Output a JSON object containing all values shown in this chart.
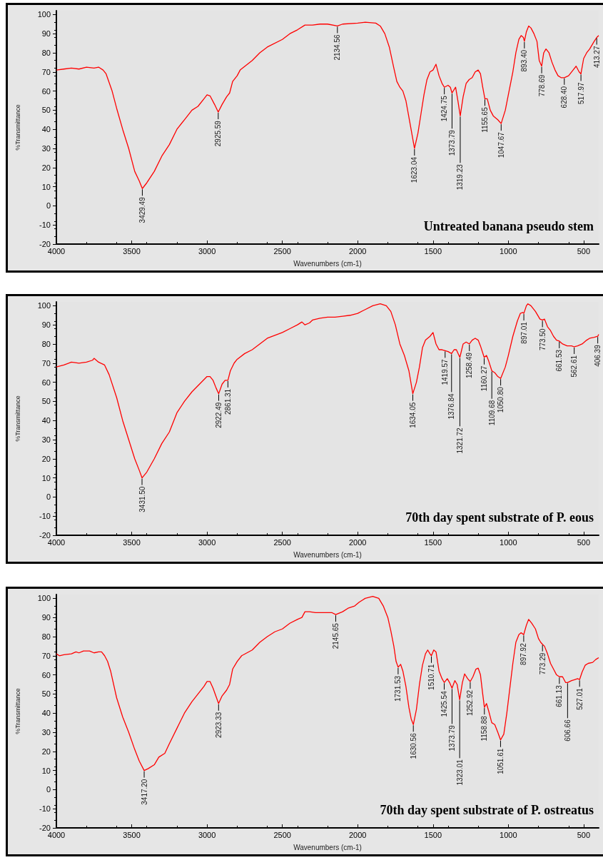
{
  "chart_data": [
    {
      "type": "line",
      "title": "Untreated banana pseudo stem",
      "xlabel": "Wavenumbers (cm-1)",
      "ylabel": "%Transmittance",
      "xlim": [
        4000,
        400
      ],
      "ylim": [
        -20,
        102
      ],
      "xticks": [
        4000,
        3500,
        3000,
        2500,
        2000,
        1500,
        1000,
        500
      ],
      "yticks": [
        -20,
        -10,
        0,
        10,
        20,
        30,
        40,
        50,
        60,
        70,
        80,
        90,
        100
      ],
      "x": [
        4000,
        3950,
        3900,
        3850,
        3800,
        3750,
        3720,
        3690,
        3670,
        3630,
        3600,
        3560,
        3520,
        3480,
        3450,
        3429.49,
        3400,
        3350,
        3300,
        3250,
        3200,
        3150,
        3100,
        3060,
        3020,
        3000,
        2980,
        2950,
        2925.59,
        2900,
        2870,
        2850,
        2830,
        2800,
        2780,
        2700,
        2650,
        2600,
        2500,
        2450,
        2400,
        2350,
        2300,
        2250,
        2200,
        2134.56,
        2100,
        2000,
        1950,
        1880,
        1850,
        1820,
        1790,
        1760,
        1740,
        1720,
        1700,
        1680,
        1650,
        1623.04,
        1600,
        1580,
        1560,
        1540,
        1520,
        1500,
        1480,
        1460,
        1440,
        1424.75,
        1400,
        1385,
        1373.79,
        1350,
        1335,
        1319.23,
        1300,
        1280,
        1260,
        1240,
        1220,
        1200,
        1185,
        1170,
        1155.65,
        1140,
        1120,
        1100,
        1070,
        1047.67,
        1020,
        1000,
        970,
        950,
        930,
        915,
        900,
        893.4,
        880,
        865,
        850,
        830,
        810,
        795,
        778.69,
        765,
        750,
        730,
        710,
        690,
        670,
        650,
        628.4,
        600,
        570,
        550,
        530,
        517.97,
        500,
        480,
        460,
        430,
        413.27,
        400
      ],
      "series": [
        {
          "color": "#ff0000",
          "values": [
            71,
            71.5,
            72,
            71.5,
            72.5,
            72,
            72.5,
            71,
            69,
            60,
            51,
            40,
            30,
            18,
            13,
            9,
            12,
            18,
            26,
            32,
            40,
            45,
            50,
            52,
            56,
            58,
            57.5,
            53,
            49,
            53,
            57,
            59,
            65,
            68,
            71,
            76,
            80,
            83,
            87,
            90,
            92,
            94.5,
            94.5,
            95,
            95,
            94,
            95,
            95.5,
            96,
            95.5,
            94,
            90,
            83,
            72,
            65,
            62,
            60,
            55,
            42,
            30,
            38,
            48,
            58,
            66,
            70,
            71,
            74,
            68,
            64,
            62,
            63,
            62,
            59,
            62,
            55,
            47,
            57,
            64,
            66,
            67,
            70,
            71,
            69,
            62,
            56,
            56,
            50,
            47,
            45,
            43,
            50,
            58,
            70,
            80,
            87,
            89,
            88,
            86,
            91,
            94,
            93,
            90,
            86,
            76,
            73,
            80,
            82,
            80,
            75,
            71,
            68,
            67,
            67,
            68,
            71,
            73,
            70,
            69,
            77,
            80,
            82,
            86,
            88,
            89
          ]
        }
      ],
      "annotations": [
        {
          "text": "3429.49",
          "x": 3429.49,
          "y": 9
        },
        {
          "text": "2925.59",
          "x": 2925.59,
          "y": 49
        },
        {
          "text": "2134.56",
          "x": 2134.56,
          "y": 94
        },
        {
          "text": "1623.04",
          "x": 1623.04,
          "y": 30
        },
        {
          "text": "1424.75",
          "x": 1424.75,
          "y": 62
        },
        {
          "text": "1373.79",
          "x": 1373.79,
          "y": 59
        },
        {
          "text": "1319.23",
          "x": 1319.23,
          "y": 47
        },
        {
          "text": "1155.65",
          "x": 1155.65,
          "y": 56
        },
        {
          "text": "1047.67",
          "x": 1047.67,
          "y": 43
        },
        {
          "text": "893.40",
          "x": 893.4,
          "y": 86
        },
        {
          "text": "778.69",
          "x": 778.69,
          "y": 73
        },
        {
          "text": "628.40",
          "x": 628.4,
          "y": 67
        },
        {
          "text": "517.97",
          "x": 517.97,
          "y": 69
        },
        {
          "text": "413.27",
          "x": 413.27,
          "y": 88
        }
      ]
    },
    {
      "type": "line",
      "title": "70th day spent substrate of P. eous",
      "xlabel": "Wavenumbers (cm-1)",
      "ylabel": "%Transmittance",
      "xlim": [
        4000,
        400
      ],
      "ylim": [
        -20,
        102
      ],
      "xticks": [
        4000,
        3500,
        3000,
        2500,
        2000,
        1500,
        1000,
        500
      ],
      "yticks": [
        -20,
        -10,
        0,
        10,
        20,
        30,
        40,
        50,
        60,
        70,
        80,
        90,
        100
      ],
      "x": [
        4000,
        3950,
        3900,
        3850,
        3800,
        3760,
        3750,
        3720,
        3680,
        3650,
        3600,
        3560,
        3520,
        3480,
        3450,
        3431.5,
        3400,
        3350,
        3300,
        3250,
        3200,
        3150,
        3100,
        3050,
        3000,
        2980,
        2960,
        2940,
        2922.49,
        2900,
        2880,
        2861.31,
        2845,
        2820,
        2800,
        2750,
        2700,
        2600,
        2500,
        2450,
        2400,
        2370,
        2350,
        2320,
        2300,
        2250,
        2200,
        2150,
        2100,
        2050,
        2000,
        1950,
        1900,
        1850,
        1810,
        1780,
        1750,
        1720,
        1690,
        1660,
        1634.05,
        1610,
        1590,
        1570,
        1550,
        1520,
        1500,
        1480,
        1460,
        1440,
        1419.57,
        1400,
        1376.84,
        1360,
        1345,
        1321.72,
        1300,
        1280,
        1258.49,
        1240,
        1220,
        1200,
        1185,
        1160.27,
        1145,
        1130,
        1109.68,
        1090,
        1070,
        1050.8,
        1020,
        1000,
        970,
        940,
        920,
        905,
        897.01,
        880,
        870,
        850,
        820,
        790,
        773.5,
        760,
        740,
        720,
        700,
        680,
        661.53,
        640,
        610,
        580,
        562.61,
        540,
        510,
        480,
        460,
        430,
        406.39,
        400
      ],
      "series": [
        {
          "color": "#ff0000",
          "values": [
            68,
            69,
            70.5,
            70,
            70.5,
            71.5,
            72.5,
            70.5,
            69,
            64,
            52,
            40,
            30,
            20,
            14,
            10,
            13,
            20,
            28,
            34,
            44,
            50,
            55,
            59,
            63,
            63,
            61,
            57,
            54,
            59,
            61,
            61,
            66,
            70,
            72,
            75,
            77,
            83,
            86,
            88,
            90,
            91.5,
            90,
            91,
            92.5,
            93.5,
            94,
            94,
            94.5,
            95,
            96,
            98,
            100,
            101,
            100,
            97,
            90,
            80,
            74,
            66,
            54,
            60,
            68,
            78,
            82,
            84,
            86,
            80,
            77,
            77,
            76.5,
            76,
            75,
            77,
            77,
            73,
            80,
            81,
            80,
            82,
            83,
            82,
            79,
            73,
            74,
            71,
            66,
            65,
            63,
            62,
            68,
            74,
            84,
            92,
            96,
            96.5,
            96,
            100,
            101,
            100,
            97,
            93,
            92.5,
            93,
            89,
            87,
            84,
            82,
            81.5,
            80,
            79,
            79,
            78.5,
            79,
            80,
            82,
            83,
            83.5,
            84,
            85
          ]
        }
      ],
      "annotations": [
        {
          "text": "3431.50",
          "x": 3431.5,
          "y": 10
        },
        {
          "text": "2922.49",
          "x": 2922.49,
          "y": 54
        },
        {
          "text": "2861.31",
          "x": 2861.31,
          "y": 61
        },
        {
          "text": "1634.05",
          "x": 1634.05,
          "y": 54
        },
        {
          "text": "1419.57",
          "x": 1419.57,
          "y": 76.5
        },
        {
          "text": "1376.84",
          "x": 1376.84,
          "y": 75
        },
        {
          "text": "1321.72",
          "x": 1321.72,
          "y": 73
        },
        {
          "text": "1258.49",
          "x": 1258.49,
          "y": 80
        },
        {
          "text": "1160.27",
          "x": 1160.27,
          "y": 73
        },
        {
          "text": "1109.68",
          "x": 1109.68,
          "y": 66
        },
        {
          "text": "1050.80",
          "x": 1050.8,
          "y": 62
        },
        {
          "text": "897.01",
          "x": 897.01,
          "y": 96
        },
        {
          "text": "773.50",
          "x": 773.5,
          "y": 92.5
        },
        {
          "text": "661.53",
          "x": 661.53,
          "y": 81.5
        },
        {
          "text": "562.61",
          "x": 562.61,
          "y": 78.5
        },
        {
          "text": "406.39",
          "x": 406.39,
          "y": 84
        }
      ]
    },
    {
      "type": "line",
      "title": "70th day spent substrate of P. ostreatus",
      "xlabel": "Wavenumbers (cm-1)",
      "ylabel": "%Transmittance",
      "xlim": [
        4000,
        400
      ],
      "ylim": [
        -20,
        102
      ],
      "xticks": [
        4000,
        3500,
        3000,
        2500,
        2000,
        1500,
        1000,
        500
      ],
      "yticks": [
        -20,
        -10,
        0,
        10,
        20,
        30,
        40,
        50,
        60,
        70,
        80,
        90,
        100
      ],
      "x": [
        4000,
        3980,
        3950,
        3900,
        3870,
        3850,
        3820,
        3780,
        3750,
        3720,
        3700,
        3680,
        3660,
        3640,
        3600,
        3560,
        3520,
        3480,
        3450,
        3417.2,
        3390,
        3350,
        3320,
        3280,
        3250,
        3200,
        3150,
        3100,
        3060,
        3020,
        3000,
        2980,
        2960,
        2923.33,
        2900,
        2870,
        2850,
        2830,
        2800,
        2770,
        2700,
        2650,
        2600,
        2550,
        2500,
        2450,
        2400,
        2370,
        2350,
        2320,
        2280,
        2200,
        2170,
        2145.65,
        2100,
        2060,
        2020,
        1990,
        1950,
        1900,
        1860,
        1830,
        1800,
        1780,
        1760,
        1745,
        1731.53,
        1715,
        1700,
        1680,
        1660,
        1645,
        1630.56,
        1610,
        1590,
        1570,
        1550,
        1535,
        1520,
        1510.71,
        1495,
        1480,
        1460,
        1440,
        1425.54,
        1405,
        1390,
        1373.79,
        1355,
        1340,
        1323.01,
        1305,
        1290,
        1270,
        1252.92,
        1235,
        1215,
        1200,
        1185,
        1170,
        1158.88,
        1145,
        1130,
        1110,
        1090,
        1070,
        1051.61,
        1030,
        1010,
        990,
        970,
        950,
        930,
        915,
        897.92,
        880,
        865,
        845,
        820,
        800,
        785,
        773.29,
        760,
        740,
        720,
        700,
        680,
        661.13,
        640,
        620,
        606.66,
        580,
        560,
        540,
        527.01,
        510,
        490,
        470,
        440,
        420,
        400
      ],
      "series": [
        {
          "color": "#ff0000",
          "values": [
            71,
            70,
            70.5,
            71,
            72,
            71.5,
            72.5,
            72.5,
            71.5,
            72,
            72,
            70,
            67,
            62,
            48,
            38,
            30,
            21,
            15,
            10,
            11,
            13,
            17,
            19,
            24,
            32,
            40,
            46,
            50,
            54,
            56.5,
            56.5,
            53,
            45,
            49,
            52,
            55,
            63,
            67,
            70,
            73,
            77,
            80,
            82.5,
            84,
            87,
            89,
            90,
            93,
            93,
            92.5,
            92.5,
            92.5,
            91.5,
            93,
            95,
            96,
            98,
            100,
            101,
            100,
            96,
            90,
            83,
            75,
            67,
            64,
            65.5,
            62,
            54,
            43,
            37,
            34,
            42,
            55,
            65,
            71,
            73,
            71,
            70,
            73,
            72,
            62,
            58,
            56,
            58,
            56,
            53,
            57,
            55,
            47,
            56,
            60.5,
            58,
            56.5,
            59,
            63,
            63.5,
            60,
            50,
            43,
            45,
            41,
            35,
            34,
            30,
            26,
            29,
            40,
            53,
            66,
            77,
            81,
            82,
            81,
            86,
            89,
            87,
            84,
            79,
            77,
            76,
            75,
            71,
            66,
            63,
            60,
            59,
            59,
            56,
            56,
            57,
            57.5,
            58,
            57.5,
            61.5,
            65,
            66,
            66.5,
            68,
            69
          ]
        }
      ],
      "annotations": [
        {
          "text": "3417.20",
          "x": 3417.2,
          "y": 10
        },
        {
          "text": "2923.33",
          "x": 2923.33,
          "y": 45
        },
        {
          "text": "2145.65",
          "x": 2145.65,
          "y": 91.5
        },
        {
          "text": "1731.53",
          "x": 1731.53,
          "y": 64
        },
        {
          "text": "1630.56",
          "x": 1630.56,
          "y": 34
        },
        {
          "text": "1510.71",
          "x": 1510.71,
          "y": 70
        },
        {
          "text": "1425.54",
          "x": 1425.54,
          "y": 56
        },
        {
          "text": "1373.79",
          "x": 1373.79,
          "y": 53
        },
        {
          "text": "1323.01",
          "x": 1323.01,
          "y": 47
        },
        {
          "text": "1252.92",
          "x": 1252.92,
          "y": 56.5
        },
        {
          "text": "1158.88",
          "x": 1158.88,
          "y": 43
        },
        {
          "text": "1051.61",
          "x": 1051.61,
          "y": 26
        },
        {
          "text": "897.92",
          "x": 897.92,
          "y": 81
        },
        {
          "text": "773.29",
          "x": 773.29,
          "y": 76
        },
        {
          "text": "661.13",
          "x": 661.13,
          "y": 59
        },
        {
          "text": "606.66",
          "x": 606.66,
          "y": 56
        },
        {
          "text": "527.01",
          "x": 527.01,
          "y": 57.5
        }
      ]
    }
  ]
}
